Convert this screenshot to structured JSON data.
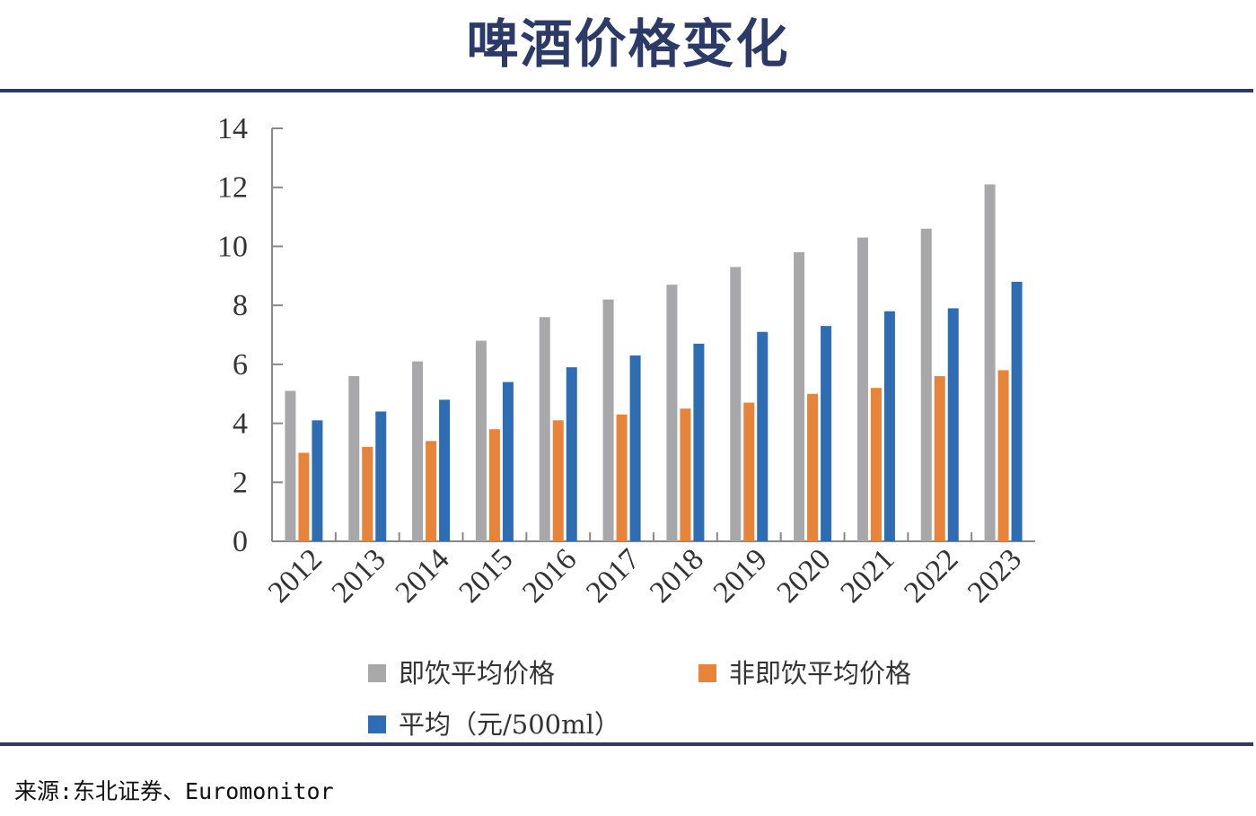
{
  "header": {
    "title": "啤酒价格变化"
  },
  "footer": {
    "source": "来源:东北证券、Euromonitor"
  },
  "colors": {
    "accent": "#2b3a67",
    "gray": "#a8a8aa",
    "orange": "#e8843a",
    "blue": "#2e6db4"
  },
  "chart_data": {
    "type": "bar",
    "title": "",
    "xlabel": "",
    "ylabel": "",
    "ylim": [
      0,
      14
    ],
    "yticks": [
      "0",
      "2",
      "4",
      "6",
      "8",
      "10",
      "12",
      "14"
    ],
    "categories": [
      "2012",
      "2013",
      "2014",
      "2015",
      "2016",
      "2017",
      "2018",
      "2019",
      "2020",
      "2021",
      "2022",
      "2023"
    ],
    "series": [
      {
        "name": "即饮平均价格",
        "color": "#a8a8aa",
        "values": [
          5.1,
          5.6,
          6.1,
          6.8,
          7.6,
          8.2,
          8.7,
          9.3,
          9.8,
          10.3,
          10.6,
          12.1
        ]
      },
      {
        "name": "非即饮平均价格",
        "color": "#e8843a",
        "values": [
          3.0,
          3.2,
          3.4,
          3.8,
          4.1,
          4.3,
          4.5,
          4.7,
          5.0,
          5.2,
          5.6,
          5.8
        ]
      },
      {
        "name": "平均（元/500ml）",
        "color": "#2e6db4",
        "values": [
          4.1,
          4.4,
          4.8,
          5.4,
          5.9,
          6.3,
          6.7,
          7.1,
          7.3,
          7.8,
          7.9,
          8.8
        ]
      }
    ],
    "legend_position": "bottom",
    "grid": false
  }
}
